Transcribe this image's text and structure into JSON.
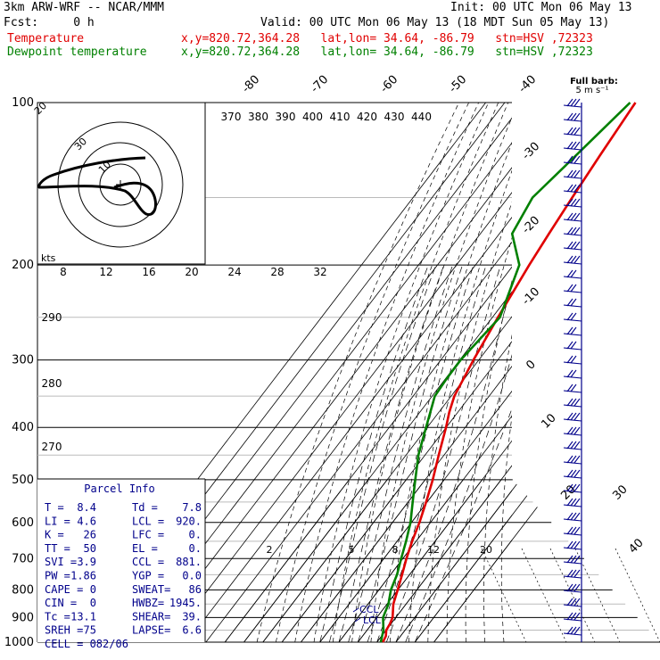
{
  "header": {
    "line1_left": "3km ARW-WRF -- NCAR/MMM",
    "line1_right": "Init: 00 UTC Mon 06 May 13",
    "line2_left": "Fcst:     0 h",
    "line2_right": "Valid: 00 UTC Mon 06 May 13 (18 MDT Sun 05 May 13)",
    "temp_label": "Temperature",
    "temp_info": "x,y=820.72,364.28   lat,lon= 34.64, -86.79   stn=HSV ,72323",
    "dew_label": "Dewpoint temperature",
    "dew_info": "x,y=820.72,364.28   lat,lon= 34.64, -86.79   stn=HSV ,72323"
  },
  "colors": {
    "temperature": "#e00000",
    "dewpoint": "#008000",
    "wind": "#00008b",
    "text": "#000000"
  },
  "chart_data": {
    "type": "line",
    "pressure_levels": [
      "100",
      "200",
      "300",
      "400",
      "500",
      "600",
      "700",
      "800",
      "900",
      "1000"
    ],
    "skewed_isotherms": [
      "-80",
      "-70",
      "-60",
      "-50",
      "-40",
      "-30",
      "-20",
      "-10",
      "0",
      "10",
      "20",
      "30",
      "40"
    ],
    "theta_labels": [
      "370",
      "380",
      "390",
      "400",
      "410",
      "420",
      "430",
      "440"
    ],
    "theta_side_labels": [
      "290",
      "280",
      "270"
    ],
    "mixing_ratio_labels": [
      "2",
      "5",
      "8",
      "12",
      "20"
    ],
    "hodograph": {
      "knots_label": "kts",
      "speed_ticks": [
        "8",
        "12",
        "16",
        "20",
        "24",
        "28",
        "32"
      ],
      "ring_labels": [
        "30",
        "20",
        "10"
      ]
    },
    "wind_legend": "Full barb:\n5 m s⁻¹",
    "lcl_label": "LCL",
    "ccl_label": "CCL",
    "series": [
      {
        "name": "Temperature",
        "color": "#e00000",
        "pressure": [
          1000,
          975,
          950,
          925,
          900,
          850,
          800,
          750,
          700,
          650,
          600,
          550,
          500,
          450,
          400,
          375,
          350,
          300,
          250,
          200,
          175,
          150,
          125,
          100
        ],
        "temp": [
          23.1,
          22.3,
          20.1,
          19.5,
          18.3,
          13.3,
          9.9,
          6.1,
          1.9,
          -2.1,
          -5.8,
          -10.5,
          -16.0,
          -22.8,
          -30.1,
          -34.5,
          -38.3,
          -42.8,
          -47.1,
          -51.7,
          -53.9,
          -56.2,
          -58.6,
          -61.2
        ]
      },
      {
        "name": "Dewpoint temperature",
        "color": "#008000",
        "pressure": [
          1000,
          950,
          900,
          850,
          800,
          750,
          700,
          650,
          600,
          550,
          500,
          450,
          400,
          350,
          325,
          300,
          250,
          200,
          175,
          150,
          125,
          100
        ],
        "temp": [
          22.0,
          18.6,
          13.3,
          10.7,
          6.3,
          3.4,
          -0.9,
          -5.3,
          -10.5,
          -17.6,
          -25.2,
          -33.5,
          -40.6,
          -48.6,
          -49.4,
          -49.6,
          -46.1,
          -56.9,
          -73.3,
          -77.1,
          -71.1,
          -64.0
        ]
      }
    ]
  },
  "parcel": {
    "title": "Parcel Info",
    "rows": [
      [
        "T  =",
        "8.4",
        "Td =",
        "7.8"
      ],
      [
        "LI =",
        "4.6",
        "LCL =",
        "920."
      ],
      [
        "K  =",
        "26",
        "LFC =",
        "0."
      ],
      [
        "TT =",
        "50",
        "EL  =",
        "0."
      ],
      [
        "SVI =",
        "3.9",
        "CCL =",
        "881."
      ],
      [
        "PW =",
        "1.86",
        "YGP =",
        "0.0"
      ],
      [
        "CAPE =",
        "0",
        "SWEAT=",
        "86"
      ],
      [
        "CIN =",
        "0",
        "HWBZ=",
        "1945."
      ],
      [
        "Tc =",
        "13.1",
        "SHEAR=",
        "39."
      ],
      [
        "SREH =",
        "75",
        "LAPSE=",
        "6.6"
      ],
      [
        "CELL = 082/06",
        "",
        "",
        ""
      ]
    ]
  }
}
